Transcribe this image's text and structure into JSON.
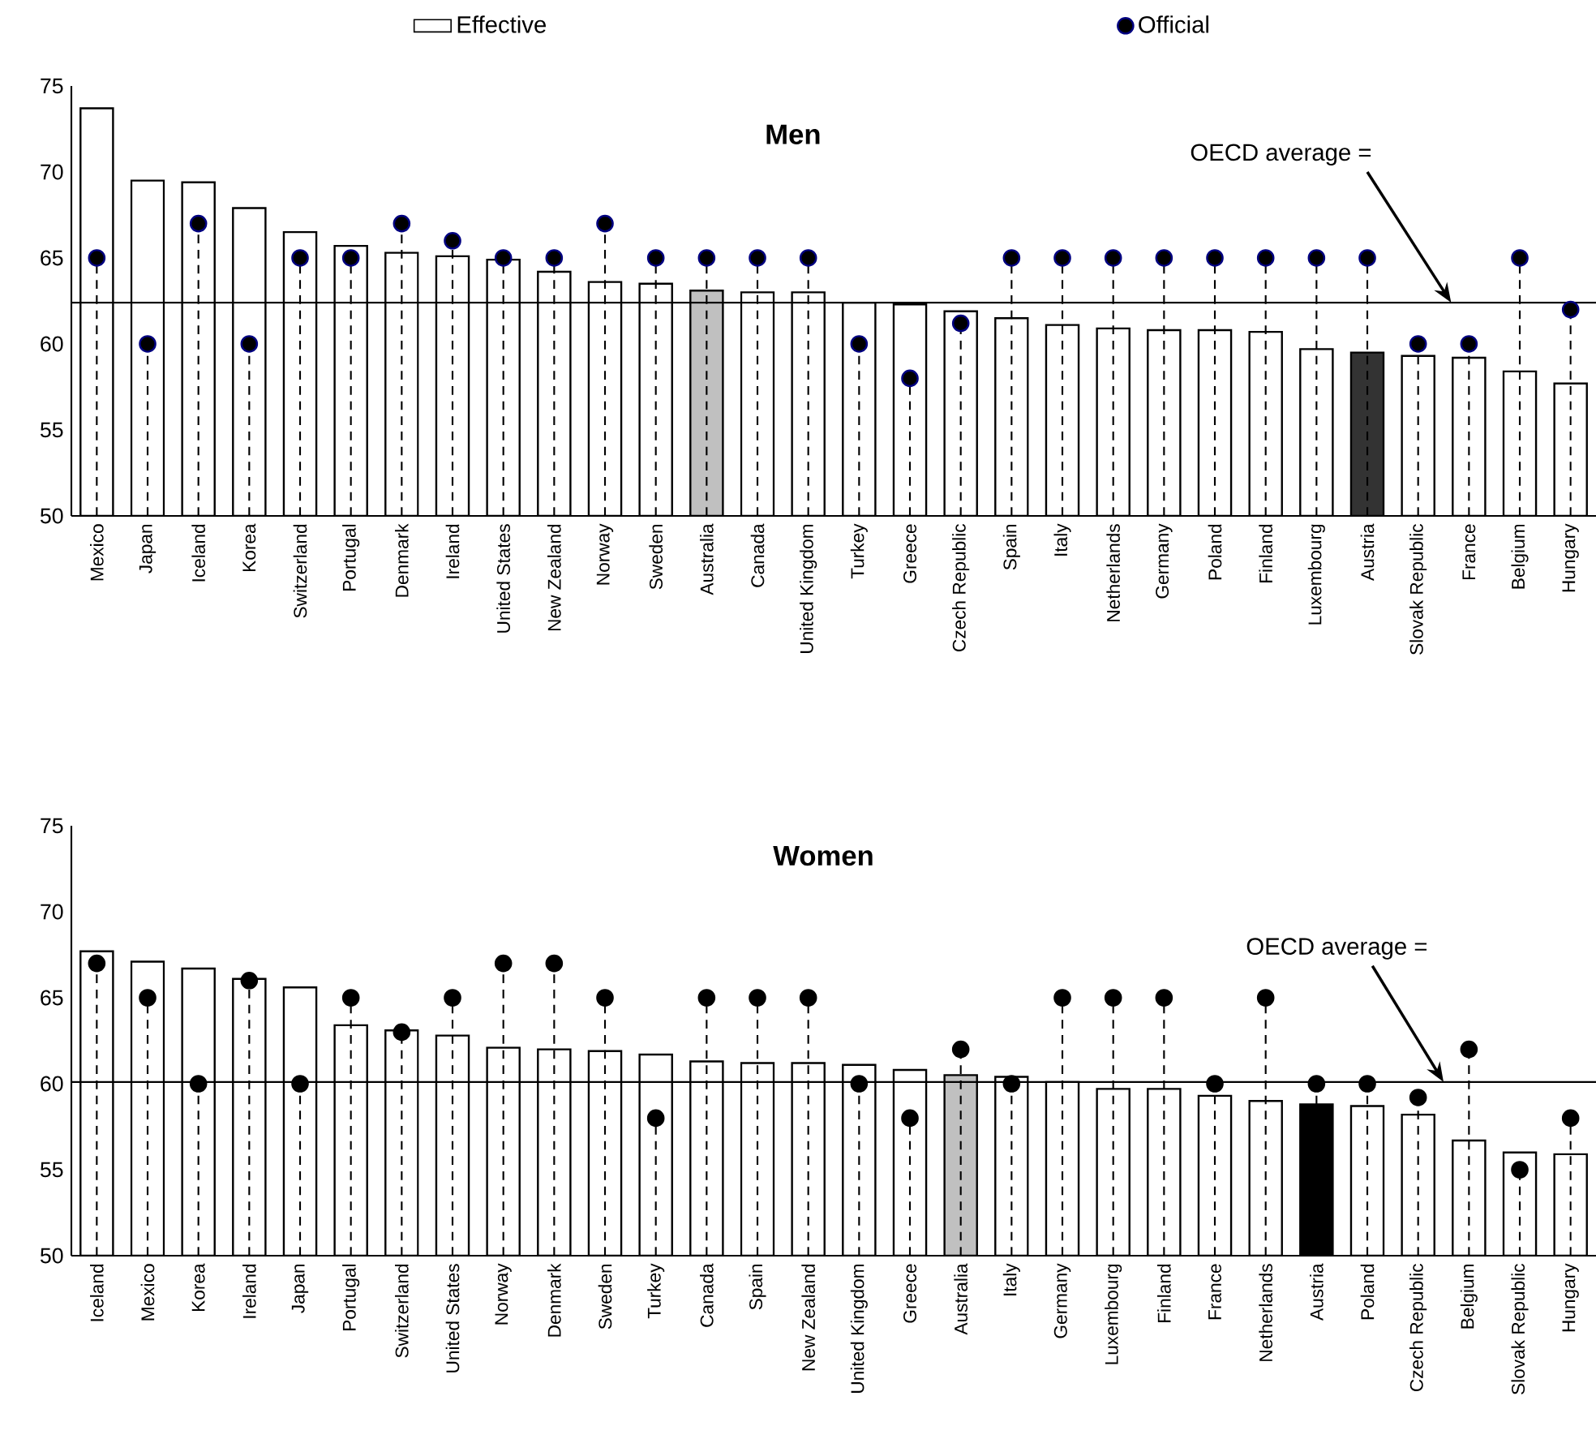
{
  "chart_data": [
    {
      "type": "bar",
      "title": "Men",
      "categories": [
        "Mexico",
        "Japan",
        "Iceland",
        "Korea",
        "Switzerland",
        "Portugal",
        "Denmark",
        "Ireland",
        "United States",
        "New Zealand",
        "Norway",
        "Sweden",
        "Australia",
        "Canada",
        "United Kingdom",
        "Turkey",
        "Greece",
        "Czech Republic",
        "Spain",
        "Italy",
        "Netherlands",
        "Germany",
        "Poland",
        "Finland",
        "Luxembourg",
        "Austria",
        "Slovak Republic",
        "France",
        "Belgium",
        "Hungary"
      ],
      "series": [
        {
          "name": "Effective",
          "colors": [
            "#ffffff",
            "#ffffff",
            "#ffffff",
            "#ffffff",
            "#ffffff",
            "#ffffff",
            "#ffffff",
            "#ffffff",
            "#ffffff",
            "#ffffff",
            "#ffffff",
            "#ffffff",
            "#c0c0c0",
            "#ffffff",
            "#ffffff",
            "#ffffff",
            "#ffffff",
            "#ffffff",
            "#ffffff",
            "#ffffff",
            "#ffffff",
            "#ffffff",
            "#ffffff",
            "#ffffff",
            "#ffffff",
            "#333333",
            "#ffffff",
            "#ffffff",
            "#ffffff",
            "#ffffff"
          ],
          "values": [
            73.7,
            69.5,
            69.4,
            67.9,
            66.5,
            65.7,
            65.3,
            65.1,
            64.9,
            64.2,
            63.6,
            63.5,
            63.1,
            63.0,
            63.0,
            62.4,
            62.3,
            61.9,
            61.5,
            61.1,
            60.9,
            60.8,
            60.8,
            60.7,
            59.7,
            59.5,
            59.3,
            59.2,
            58.4,
            57.7
          ]
        },
        {
          "name": "Official",
          "type": "lollipop",
          "color": "#000080",
          "line_style": "dashed",
          "values": [
            65,
            60,
            67,
            60,
            65,
            65,
            67,
            66,
            65,
            65,
            67,
            65,
            65,
            65,
            65,
            60,
            58,
            61.2,
            65,
            65,
            65,
            65,
            65,
            65,
            65,
            65,
            60,
            60,
            65,
            62
          ]
        }
      ],
      "ylim": [
        50,
        75
      ],
      "yticks": [
        50,
        55,
        60,
        65,
        70,
        75
      ],
      "ref_lines": [
        {
          "axis": "y",
          "value": 62.4,
          "label": "OECD average ="
        }
      ],
      "legend": "top"
    },
    {
      "type": "bar",
      "title": "Women",
      "categories": [
        "Iceland",
        "Mexico",
        "Korea",
        "Ireland",
        "Japan",
        "Portugal",
        "Switzerland",
        "United States",
        "Norway",
        "Denmark",
        "Sweden",
        "Turkey",
        "Canada",
        "Spain",
        "New Zealand",
        "United Kingdom",
        "Greece",
        "Australia",
        "Italy",
        "Germany",
        "Luxembourg",
        "Finland",
        "France",
        "Netherlands",
        "Austria",
        "Poland",
        "Czech Republic",
        "Belgium",
        "Slovak Republic",
        "Hungary"
      ],
      "series": [
        {
          "colors": [
            "#ffffff",
            "#ffffff",
            "#ffffff",
            "#ffffff",
            "#ffffff",
            "#ffffff",
            "#ffffff",
            "#ffffff",
            "#ffffff",
            "#ffffff",
            "#ffffff",
            "#ffffff",
            "#ffffff",
            "#ffffff",
            "#ffffff",
            "#ffffff",
            "#ffffff",
            "#c0c0c0",
            "#ffffff",
            "#ffffff",
            "#ffffff",
            "#ffffff",
            "#ffffff",
            "#ffffff",
            "#000000",
            "#ffffff",
            "#ffffff",
            "#ffffff",
            "#ffffff",
            "#ffffff"
          ],
          "values": [
            67.7,
            67.1,
            66.7,
            66.1,
            65.6,
            63.4,
            63.1,
            62.8,
            62.1,
            62.0,
            61.9,
            61.7,
            61.3,
            61.2,
            61.2,
            61.1,
            60.8,
            60.5,
            60.4,
            60.1,
            59.7,
            59.7,
            59.3,
            59.0,
            58.8,
            58.7,
            58.2,
            56.7,
            56.0,
            55.9
          ]
        },
        {
          "type": "lollipop",
          "color": "#000000",
          "line_style": "dashed",
          "values": [
            67,
            65,
            60,
            66,
            60,
            65,
            63,
            65,
            67,
            67,
            65,
            58,
            65,
            65,
            65,
            60,
            58,
            62,
            60,
            65,
            65,
            65,
            60,
            65,
            60,
            60,
            59.2,
            62,
            55,
            58
          ]
        }
      ],
      "ylim": [
        50,
        75
      ],
      "yticks": [
        50,
        55,
        60,
        65,
        70,
        75
      ],
      "ref_lines": [
        {
          "axis": "y",
          "value": 60.1,
          "label": "OECD average ="
        }
      ]
    }
  ]
}
